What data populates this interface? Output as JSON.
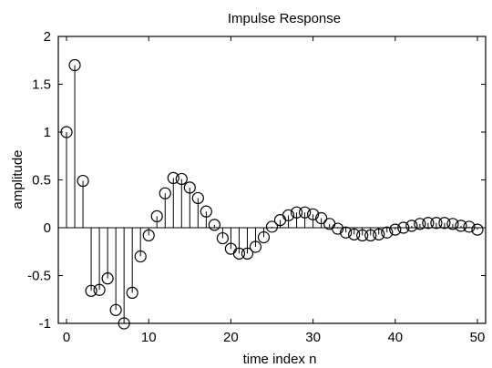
{
  "chart_data": {
    "type": "scatter",
    "style": "stem",
    "marker": "open-circle",
    "title": "Impulse Response",
    "xlabel": "time index n",
    "ylabel": "amplitude",
    "xlim": [
      -1,
      51
    ],
    "ylim": [
      -1,
      2
    ],
    "xticks": [
      0,
      10,
      20,
      30,
      40,
      50
    ],
    "yticks": [
      -1,
      -0.5,
      0,
      0.5,
      1,
      1.5,
      2
    ],
    "ytick_labels": [
      "-1",
      "-0.5",
      "0",
      "0.5",
      "1",
      "1.5",
      "2"
    ],
    "grid": false,
    "colors": {
      "line": "#000000",
      "background": "#ffffff"
    },
    "series": [
      {
        "x": [
          0,
          1,
          2,
          3,
          4,
          5,
          6,
          7,
          8,
          9,
          10,
          11,
          12,
          13,
          14,
          15,
          16,
          17,
          18,
          19,
          20,
          21,
          22,
          23,
          24,
          25,
          26,
          27,
          28,
          29,
          30,
          31,
          32,
          33,
          34,
          35,
          36,
          37,
          38,
          39,
          40,
          41,
          42,
          43,
          44,
          45,
          46,
          47,
          48,
          49,
          50
        ],
        "values": [
          1.0,
          1.7,
          0.49,
          -0.66,
          -0.65,
          -0.53,
          -0.86,
          -1.0,
          -0.68,
          -0.3,
          -0.08,
          0.12,
          0.36,
          0.52,
          0.51,
          0.42,
          0.31,
          0.17,
          0.03,
          -0.11,
          -0.22,
          -0.27,
          -0.27,
          -0.2,
          -0.1,
          0.01,
          0.08,
          0.13,
          0.16,
          0.16,
          0.14,
          0.1,
          0.04,
          -0.01,
          -0.05,
          -0.07,
          -0.08,
          -0.08,
          -0.07,
          -0.05,
          -0.02,
          0.0,
          0.02,
          0.04,
          0.05,
          0.05,
          0.05,
          0.04,
          0.02,
          0.01,
          -0.02
        ]
      }
    ]
  }
}
